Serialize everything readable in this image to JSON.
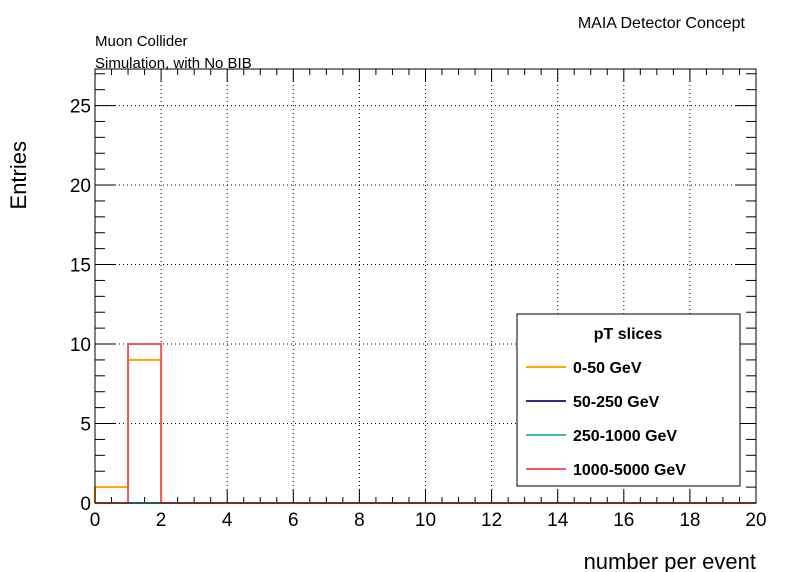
{
  "header": {
    "experiment": "MAIA Detector Concept",
    "line1": "Muon Collider",
    "line2": "Simulation, with No BIB"
  },
  "chart_data": {
    "type": "histogram",
    "xlabel": "number per event",
    "ylabel": "Entries",
    "xlim": [
      0,
      20
    ],
    "ylim": [
      0,
      27.3
    ],
    "x_ticks": [
      0,
      2,
      4,
      6,
      8,
      10,
      12,
      14,
      16,
      18,
      20
    ],
    "y_ticks": [
      0,
      5,
      10,
      15,
      20,
      25
    ],
    "grid": true,
    "bin_edges": [
      0,
      1,
      2,
      3,
      4,
      5,
      6,
      7,
      8,
      9,
      10,
      11,
      12,
      13,
      14,
      15,
      16,
      17,
      18,
      19,
      20
    ],
    "legend": {
      "title": "pT slices",
      "position": "bottom-right"
    },
    "series": [
      {
        "name": "0-50 GeV",
        "color": "#ffa500",
        "values": [
          1,
          9,
          0,
          0,
          0,
          0,
          0,
          0,
          0,
          0,
          0,
          0,
          0,
          0,
          0,
          0,
          0,
          0,
          0,
          0
        ]
      },
      {
        "name": "50-250 GeV",
        "color": "#2e2a8a",
        "values": [
          0,
          0,
          0,
          0,
          0,
          0,
          0,
          0,
          0,
          0,
          0,
          0,
          0,
          0,
          0,
          0,
          0,
          0,
          0,
          0
        ]
      },
      {
        "name": "250-1000 GeV",
        "color": "#3dbfa8",
        "values": [
          0,
          0,
          0,
          0,
          0,
          0,
          0,
          0,
          0,
          0,
          0,
          0,
          0,
          0,
          0,
          0,
          0,
          0,
          0,
          0
        ]
      },
      {
        "name": "1000-5000 GeV",
        "color": "#f05a5a",
        "values": [
          0,
          10,
          0,
          0,
          0,
          0,
          0,
          0,
          0,
          0,
          0,
          0,
          0,
          0,
          0,
          0,
          0,
          0,
          0,
          0
        ]
      }
    ]
  }
}
